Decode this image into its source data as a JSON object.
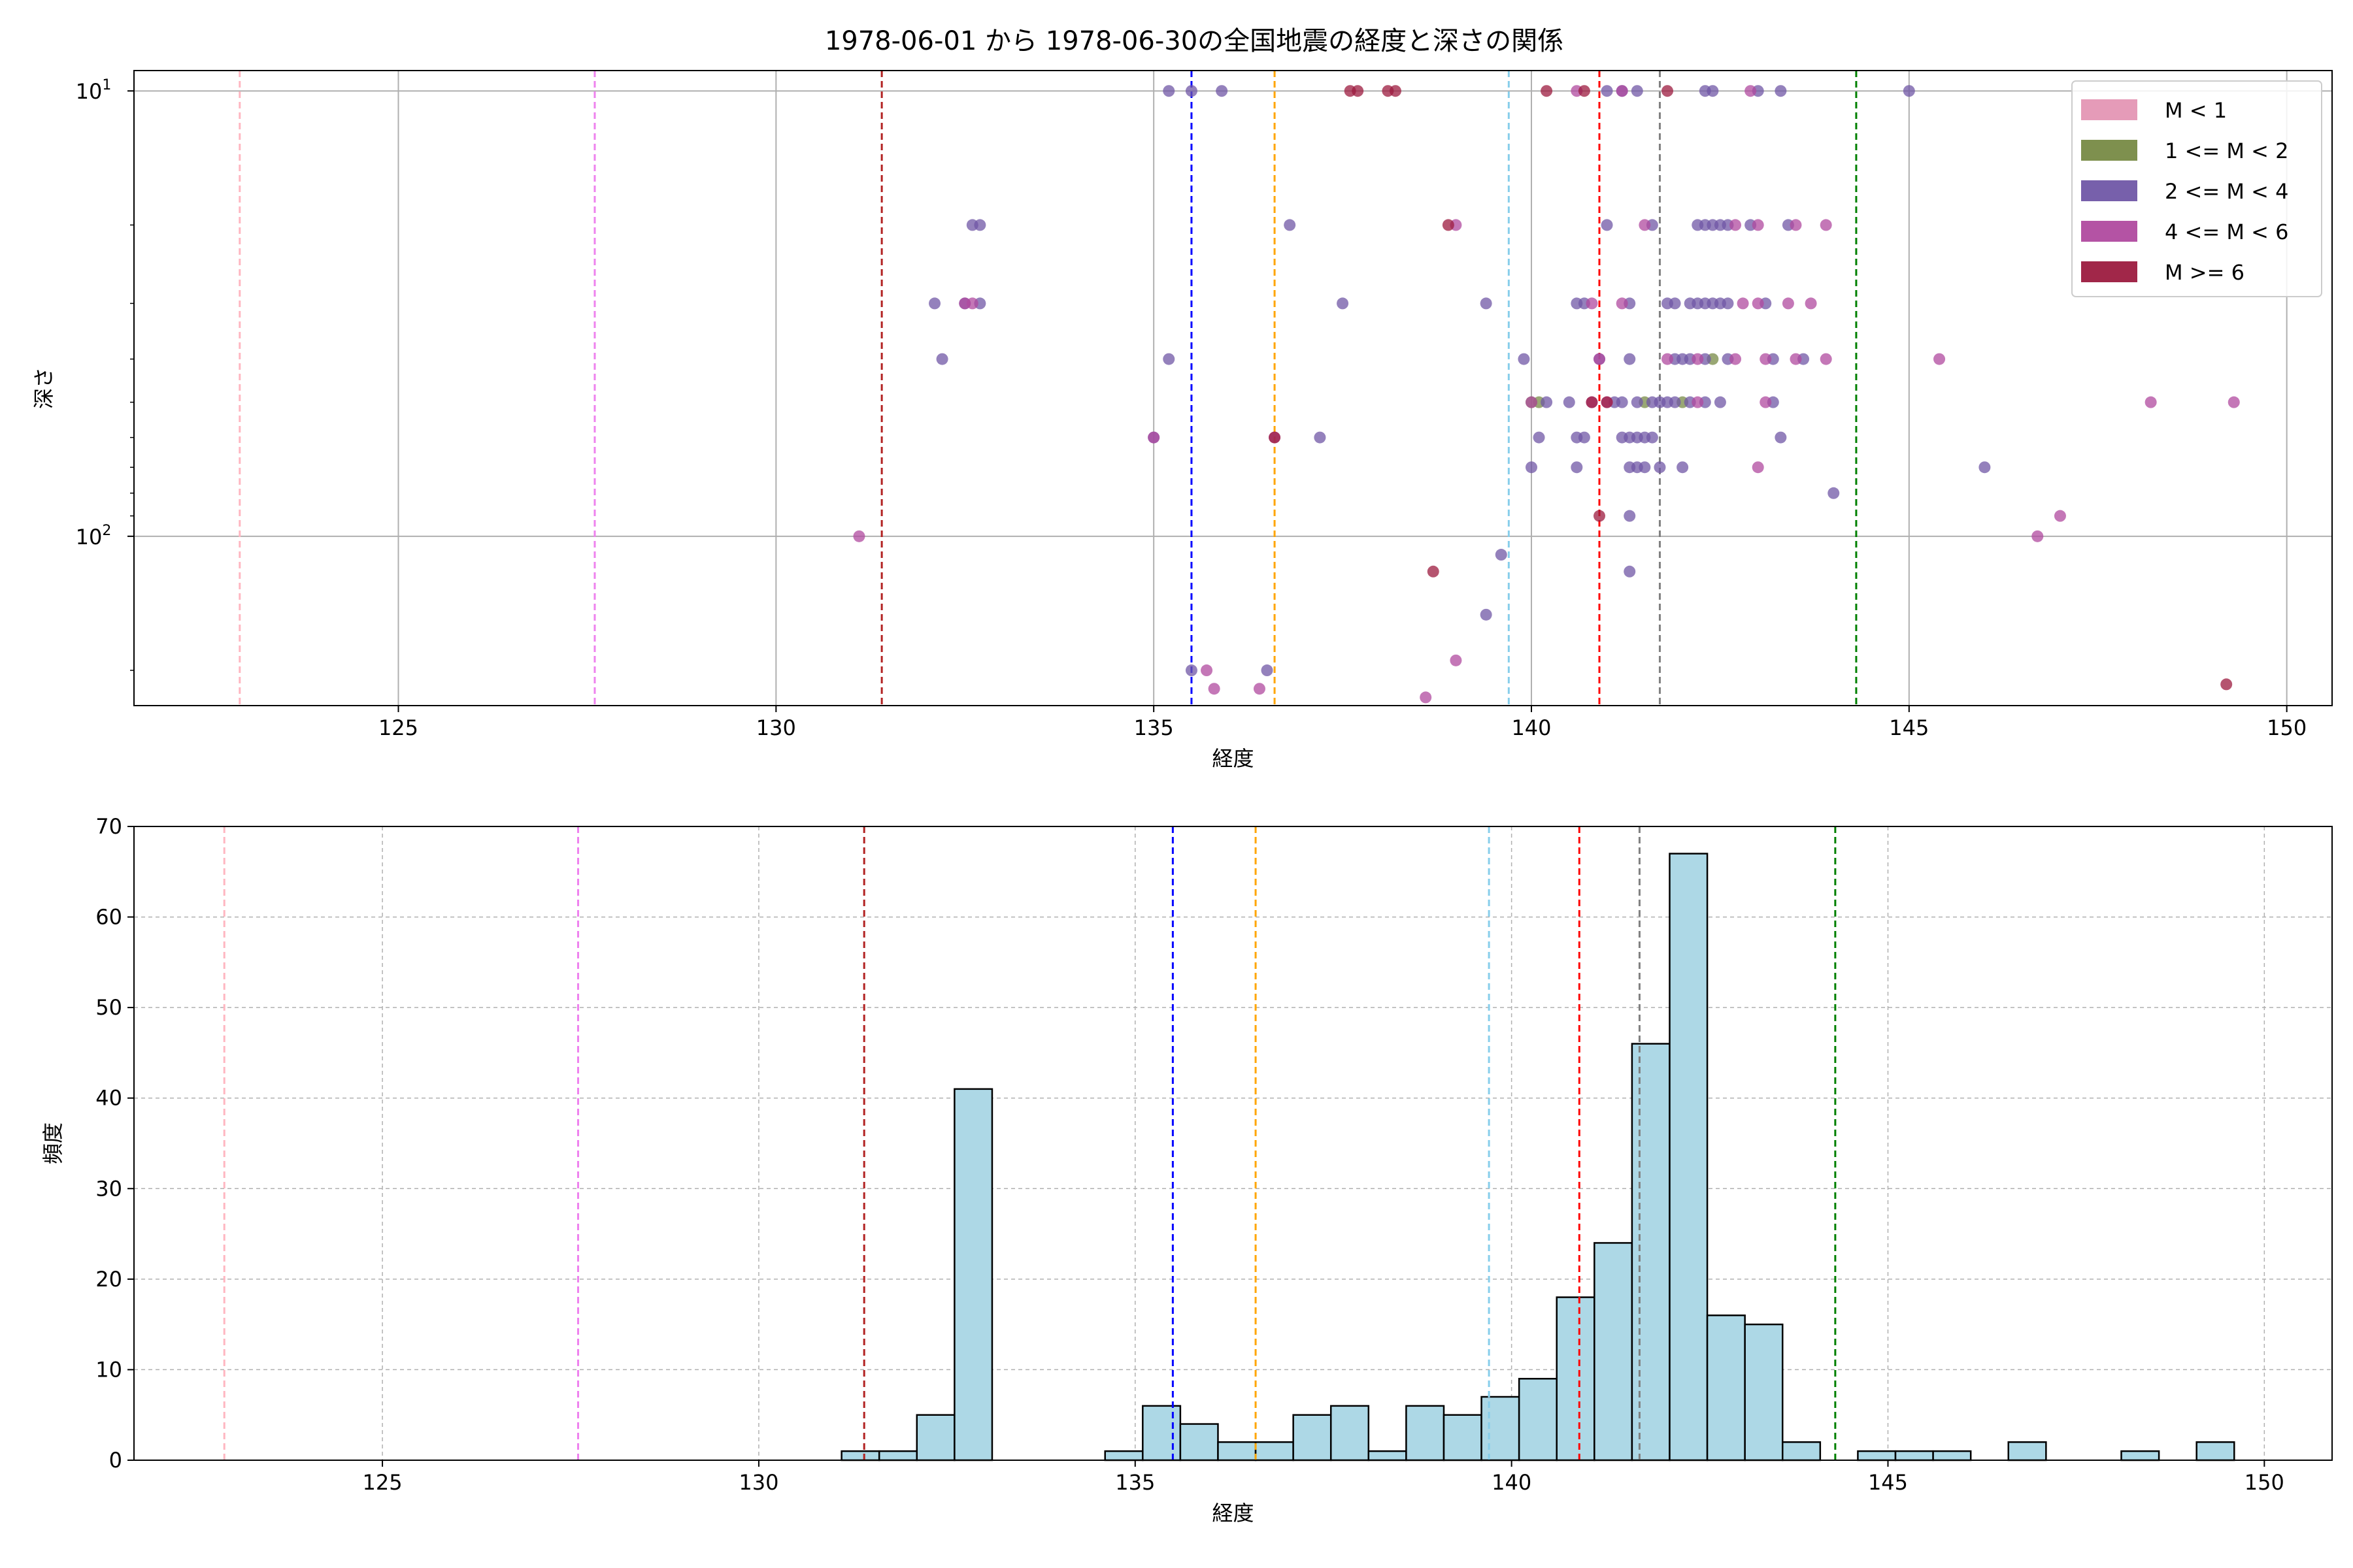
{
  "figure": {
    "title": "1978-06-01 から 1978-06-30の全国地震の経度と深さの関係"
  },
  "colors": {
    "m_lt1": "#e496b4",
    "m_1_2": "#778a45",
    "m_2_4": "#7057a6",
    "m_4_6": "#b04a9f",
    "m_ge6": "#9c1b3f",
    "hist_fill": "#add8e6",
    "hist_edge": "#000000",
    "grid": "#b0b0b0"
  },
  "chart_data": [
    {
      "type": "scatter",
      "title": "1978-06-01 から 1978-06-30の全国地震の経度と深さの関係",
      "xlabel": "経度",
      "ylabel": "深さ",
      "xlim": [
        121.5,
        150.6
      ],
      "ylim": [
        9.0,
        240
      ],
      "yscale": "log",
      "y_inverted": true,
      "grid": true,
      "legend_position": "top-right",
      "x_ticks": [
        "125",
        "130",
        "135",
        "140",
        "145",
        "150"
      ],
      "y_ticks": [
        {
          "value": 10,
          "base": "10",
          "exp": "1"
        },
        {
          "value": 100,
          "base": "10",
          "exp": "2"
        }
      ],
      "vlines": [
        {
          "x": 122.9,
          "color": "#ffb6c1"
        },
        {
          "x": 127.6,
          "color": "#ee82ee"
        },
        {
          "x": 131.4,
          "color": "#b22222"
        },
        {
          "x": 135.5,
          "color": "#0000ff"
        },
        {
          "x": 136.6,
          "color": "#ffa500"
        },
        {
          "x": 139.7,
          "color": "#87ceeb"
        },
        {
          "x": 140.9,
          "color": "#ff0000"
        },
        {
          "x": 141.7,
          "color": "#808080"
        },
        {
          "x": 144.3,
          "color": "#008000"
        }
      ],
      "series": [
        {
          "name": "M < 1",
          "color_key": "m_lt1",
          "points": []
        },
        {
          "name": "1 <= M < 2",
          "color_key": "m_1_2",
          "points": [
            [
              140.0,
              50
            ],
            [
              140.1,
              50
            ],
            [
              141.5,
              50
            ],
            [
              142.0,
              50
            ],
            [
              142.4,
              40
            ]
          ]
        },
        {
          "name": "2 <= M < 4",
          "color_key": "m_2_4",
          "points": [
            [
              135.2,
              10
            ],
            [
              135.5,
              10
            ],
            [
              135.9,
              10
            ],
            [
              141.0,
              10
            ],
            [
              141.2,
              10
            ],
            [
              141.4,
              10
            ],
            [
              142.3,
              10
            ],
            [
              142.4,
              10
            ],
            [
              143.0,
              10
            ],
            [
              143.3,
              10
            ],
            [
              145.0,
              10
            ],
            [
              132.6,
              20
            ],
            [
              132.7,
              20
            ],
            [
              136.8,
              20
            ],
            [
              141.0,
              20
            ],
            [
              141.6,
              20
            ],
            [
              142.2,
              20
            ],
            [
              142.3,
              20
            ],
            [
              142.4,
              20
            ],
            [
              142.5,
              20
            ],
            [
              142.6,
              20
            ],
            [
              142.9,
              20
            ],
            [
              143.4,
              20
            ],
            [
              132.1,
              30
            ],
            [
              132.5,
              30
            ],
            [
              132.7,
              30
            ],
            [
              137.5,
              30
            ],
            [
              139.4,
              30
            ],
            [
              140.6,
              30
            ],
            [
              140.7,
              30
            ],
            [
              141.3,
              30
            ],
            [
              141.8,
              30
            ],
            [
              141.9,
              30
            ],
            [
              142.1,
              30
            ],
            [
              142.2,
              30
            ],
            [
              142.3,
              30
            ],
            [
              142.4,
              30
            ],
            [
              142.5,
              30
            ],
            [
              142.6,
              30
            ],
            [
              143.1,
              30
            ],
            [
              132.2,
              40
            ],
            [
              135.2,
              40
            ],
            [
              139.9,
              40
            ],
            [
              140.9,
              40
            ],
            [
              141.3,
              40
            ],
            [
              141.9,
              40
            ],
            [
              142.0,
              40
            ],
            [
              142.1,
              40
            ],
            [
              142.3,
              40
            ],
            [
              142.6,
              40
            ],
            [
              143.2,
              40
            ],
            [
              143.6,
              40
            ],
            [
              140.2,
              50
            ],
            [
              140.5,
              50
            ],
            [
              141.1,
              50
            ],
            [
              141.2,
              50
            ],
            [
              141.4,
              50
            ],
            [
              141.6,
              50
            ],
            [
              141.7,
              50
            ],
            [
              141.8,
              50
            ],
            [
              141.9,
              50
            ],
            [
              142.1,
              50
            ],
            [
              142.3,
              50
            ],
            [
              142.5,
              50
            ],
            [
              143.2,
              50
            ],
            [
              135.0,
              60
            ],
            [
              137.2,
              60
            ],
            [
              140.1,
              60
            ],
            [
              140.6,
              60
            ],
            [
              140.7,
              60
            ],
            [
              141.2,
              60
            ],
            [
              141.3,
              60
            ],
            [
              141.4,
              60
            ],
            [
              141.5,
              60
            ],
            [
              141.6,
              60
            ],
            [
              143.3,
              60
            ],
            [
              140.0,
              70
            ],
            [
              140.6,
              70
            ],
            [
              141.3,
              70
            ],
            [
              141.4,
              70
            ],
            [
              141.5,
              70
            ],
            [
              141.7,
              70
            ],
            [
              142.0,
              70
            ],
            [
              146.0,
              70
            ],
            [
              144.0,
              80
            ],
            [
              141.3,
              90
            ],
            [
              139.6,
              110
            ],
            [
              141.3,
              120
            ],
            [
              139.4,
              150
            ],
            [
              135.5,
              200
            ],
            [
              136.5,
              200
            ]
          ]
        },
        {
          "name": "4 <= M < 6",
          "color_key": "m_4_6",
          "points": [
            [
              140.6,
              10
            ],
            [
              141.2,
              10
            ],
            [
              142.9,
              10
            ],
            [
              139.0,
              20
            ],
            [
              141.5,
              20
            ],
            [
              142.7,
              20
            ],
            [
              143.0,
              20
            ],
            [
              143.5,
              20
            ],
            [
              143.9,
              20
            ],
            [
              132.5,
              30
            ],
            [
              132.6,
              30
            ],
            [
              140.8,
              30
            ],
            [
              141.2,
              30
            ],
            [
              142.8,
              30
            ],
            [
              143.0,
              30
            ],
            [
              143.4,
              30
            ],
            [
              143.7,
              30
            ],
            [
              140.9,
              40
            ],
            [
              141.8,
              40
            ],
            [
              142.2,
              40
            ],
            [
              142.7,
              40
            ],
            [
              143.1,
              40
            ],
            [
              143.5,
              40
            ],
            [
              143.9,
              40
            ],
            [
              145.4,
              40
            ],
            [
              140.0,
              50
            ],
            [
              140.8,
              50
            ],
            [
              141.0,
              50
            ],
            [
              142.2,
              50
            ],
            [
              143.1,
              50
            ],
            [
              148.2,
              50
            ],
            [
              149.3,
              50
            ],
            [
              135.0,
              60
            ],
            [
              136.6,
              60
            ],
            [
              143.0,
              70
            ],
            [
              147.0,
              90
            ],
            [
              131.1,
              100
            ],
            [
              146.7,
              100
            ],
            [
              135.7,
              200
            ],
            [
              135.8,
              220
            ],
            [
              136.4,
              220
            ],
            [
              139.0,
              190
            ],
            [
              138.6,
              230
            ]
          ]
        },
        {
          "name": "M >= 6",
          "color_key": "m_ge6",
          "points": [
            [
              137.6,
              10
            ],
            [
              137.7,
              10
            ],
            [
              138.1,
              10
            ],
            [
              138.2,
              10
            ],
            [
              140.2,
              10
            ],
            [
              140.7,
              10
            ],
            [
              141.8,
              10
            ],
            [
              138.9,
              20
            ],
            [
              140.8,
              50
            ],
            [
              141.0,
              50
            ],
            [
              136.6,
              60
            ],
            [
              140.9,
              90
            ],
            [
              138.7,
              120
            ],
            [
              149.2,
              215
            ]
          ]
        }
      ]
    },
    {
      "type": "bar",
      "subtype": "histogram",
      "xlabel": "経度",
      "ylabel": "頻度",
      "xlim": [
        121.7,
        150.9
      ],
      "ylim": [
        0,
        70
      ],
      "grid": true,
      "grid_style": "dashed",
      "x_ticks": [
        "125",
        "130",
        "135",
        "140",
        "145",
        "150"
      ],
      "y_ticks": [
        "0",
        "10",
        "20",
        "30",
        "40",
        "50",
        "60",
        "70"
      ],
      "bin_edges": [
        131.1,
        131.6,
        132.1,
        132.6,
        133.1,
        133.6,
        134.1,
        134.6,
        135.1,
        135.6,
        136.1,
        136.6,
        137.1,
        137.6,
        138.1,
        138.6,
        139.1,
        139.6,
        140.1,
        140.6,
        141.1,
        141.6,
        142.1,
        142.6,
        143.1,
        143.6,
        144.1,
        144.6,
        145.1,
        145.6,
        146.1,
        146.6,
        147.1,
        147.6,
        148.1,
        148.6,
        149.1,
        149.6
      ],
      "values": [
        1,
        1,
        5,
        41,
        0,
        0,
        0,
        1,
        6,
        4,
        2,
        2,
        5,
        6,
        1,
        6,
        5,
        7,
        9,
        18,
        24,
        46,
        67,
        16,
        15,
        2,
        0,
        1,
        1,
        1,
        0,
        2,
        0,
        0,
        1,
        0,
        2
      ],
      "vlines": [
        {
          "x": 122.9,
          "color": "#ffb6c1"
        },
        {
          "x": 127.6,
          "color": "#ee82ee"
        },
        {
          "x": 131.4,
          "color": "#b22222"
        },
        {
          "x": 135.5,
          "color": "#0000ff"
        },
        {
          "x": 136.6,
          "color": "#ffa500"
        },
        {
          "x": 139.7,
          "color": "#87ceeb"
        },
        {
          "x": 140.9,
          "color": "#ff0000"
        },
        {
          "x": 141.7,
          "color": "#808080"
        },
        {
          "x": 144.3,
          "color": "#008000"
        }
      ]
    }
  ]
}
